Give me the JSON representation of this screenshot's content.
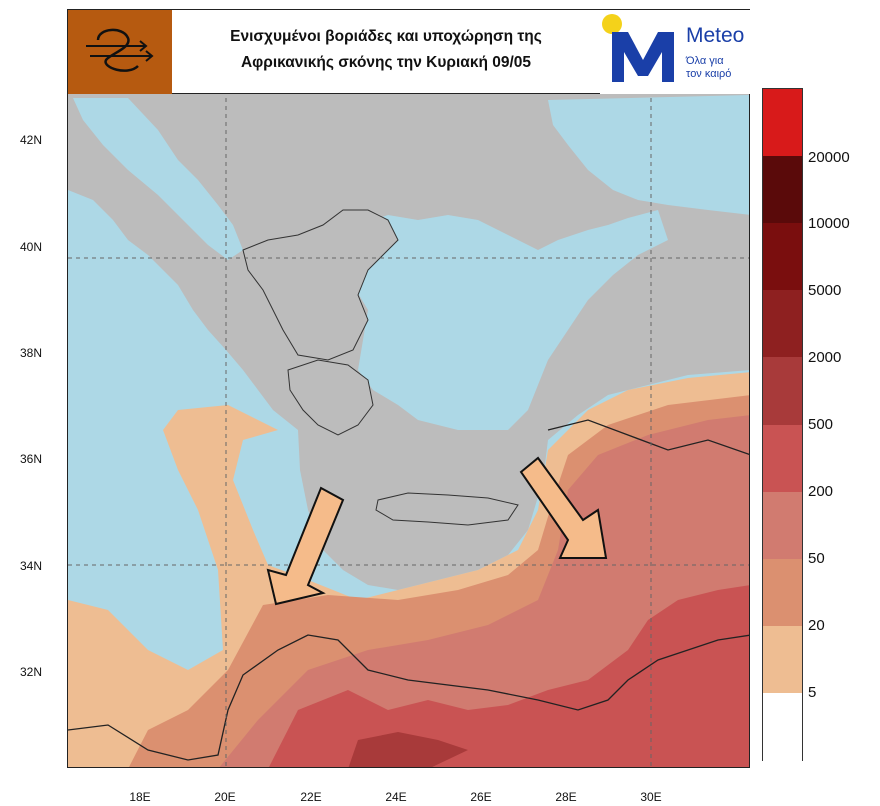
{
  "header": {
    "title_line1": "Ενισχυμένοι βοριάδες και υποχώρηση της",
    "title_line2": "Αφρικανικής σκόνης την Κυριακή 09/05",
    "brand_name": "Meteo",
    "brand_slogan_line1": "Όλα για",
    "brand_slogan_line2": "τον καιρό",
    "left_logo_icon": "wind-swirl-icon",
    "right_logo_icon": "meteo-m-logo-icon"
  },
  "axes": {
    "lat_labels": [
      "42N",
      "40N",
      "38N",
      "36N",
      "34N",
      "32N"
    ],
    "lon_labels": [
      "18E",
      "20E",
      "22E",
      "24E",
      "26E",
      "28E",
      "30E"
    ]
  },
  "colorbar": {
    "labels": [
      "20000",
      "10000",
      "5000",
      "2000",
      "500",
      "200",
      "50",
      "20",
      "5"
    ],
    "colors": [
      "#d81a1a",
      "#5a0a0a",
      "#7a0e0e",
      "#8e2020",
      "#a83a3a",
      "#c95353",
      "#d17b70",
      "#db9070",
      "#eebd92",
      "#ffffff"
    ]
  },
  "map_colors": {
    "sea": "#add8e6",
    "land": "#bcbcbc",
    "dust_5": "#eebd92",
    "dust_20": "#db9070",
    "dust_50": "#d17b70",
    "dust_200": "#c95353",
    "dust_500": "#a83a3a",
    "arrow_fill": "#f5bb8a"
  },
  "annotations": {
    "arrows": [
      "arrow-west",
      "arrow-east"
    ]
  }
}
